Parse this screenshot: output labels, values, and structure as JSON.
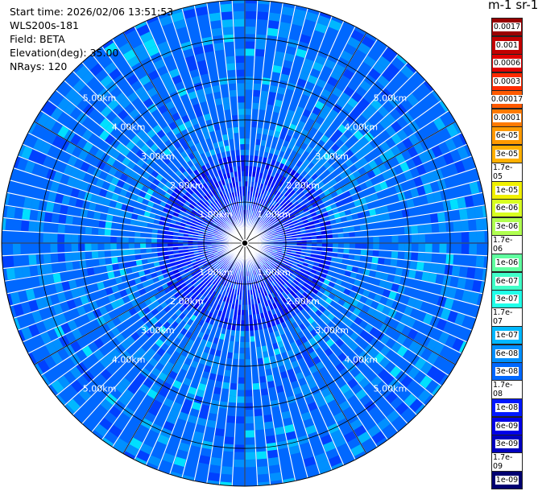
{
  "info": {
    "start_time": "Start time: 2026/02/06 13:51:53",
    "instrument": "WLS200s-181",
    "field": "Field: BETA",
    "elevation": "Elevation(deg): 35.00",
    "nrays": "NRays: 120"
  },
  "colorbar": {
    "unit_label": "m-1 sr-1",
    "levels": [
      "0.0017",
      "0.001",
      "0.0006",
      "0.0003",
      "0.00017",
      "0.0001",
      "6e-05",
      "3e-05",
      "1.7e-05",
      "1e-05",
      "6e-06",
      "3e-06",
      "1.7e-06",
      "1e-06",
      "6e-07",
      "3e-07",
      "1.7e-07",
      "1e-07",
      "6e-08",
      "3e-08",
      "1.7e-08",
      "1e-08",
      "6e-09",
      "3e-09",
      "1.7e-09",
      "1e-09"
    ],
    "colors": [
      "#9a0000",
      "#c20000",
      "#e00000",
      "#ff2a00",
      "#ff5a00",
      "#ff7a00",
      "#ff9a00",
      "#ffb000",
      "#ffd000",
      "#f0f000",
      "#d8ff20",
      "#b0ff50",
      "#80ff80",
      "#60ffa0",
      "#40ffc8",
      "#20ffe8",
      "#00e0ff",
      "#00b8ff",
      "#0090ff",
      "#0068ff",
      "#0040ff",
      "#0018ff",
      "#0000e8",
      "#0000c0",
      "#000098",
      "#000070"
    ]
  },
  "chart_data": {
    "type": "ppi_polar",
    "title": "",
    "field": "BETA",
    "elevation_deg": 35.0,
    "nrays": 120,
    "range_rings_km": [
      1,
      2,
      3,
      4,
      5
    ],
    "ring_labels": [
      "1.00km",
      "2.00km",
      "3.00km",
      "4.00km",
      "5.00km"
    ],
    "max_range_km": 5.92,
    "azimuth_lines_deg": [
      0,
      30,
      60,
      90,
      120,
      150,
      180,
      210,
      240,
      270,
      300,
      330
    ],
    "dominant_value": "3e-08",
    "value_range": [
      "1e-09",
      "1.7e-07"
    ]
  }
}
